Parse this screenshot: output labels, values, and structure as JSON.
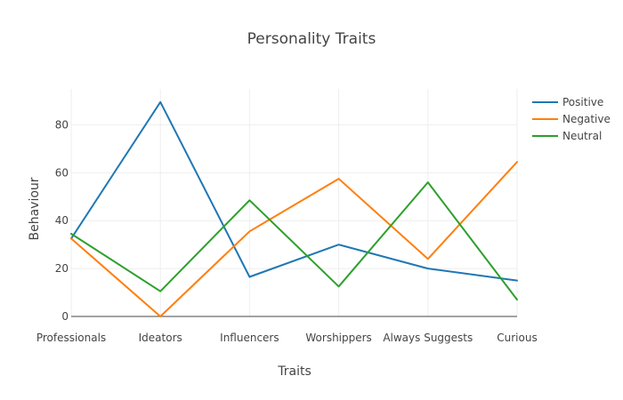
{
  "chart_data": {
    "type": "line",
    "title": "Personality Traits",
    "xlabel": "Traits",
    "ylabel": "Behaviour",
    "categories": [
      "Professionals",
      "Ideators",
      "Influencers",
      "Worshippers",
      "Always Suggests",
      "Curious"
    ],
    "ylim": [
      0,
      95
    ],
    "yticks": [
      0,
      20,
      40,
      60,
      80
    ],
    "grid": true,
    "legend_position": "top-right",
    "series": [
      {
        "name": "Positive",
        "color": "#1f77b4",
        "values": [
          32.5,
          89.5,
          16.5,
          30,
          20,
          15
        ]
      },
      {
        "name": "Negative",
        "color": "#ff7f0e",
        "values": [
          32.5,
          0,
          35.5,
          57.5,
          24,
          64.5
        ]
      },
      {
        "name": "Neutral",
        "color": "#2ca02c",
        "values": [
          34.5,
          10.5,
          48.5,
          12.5,
          56,
          7
        ]
      }
    ]
  }
}
